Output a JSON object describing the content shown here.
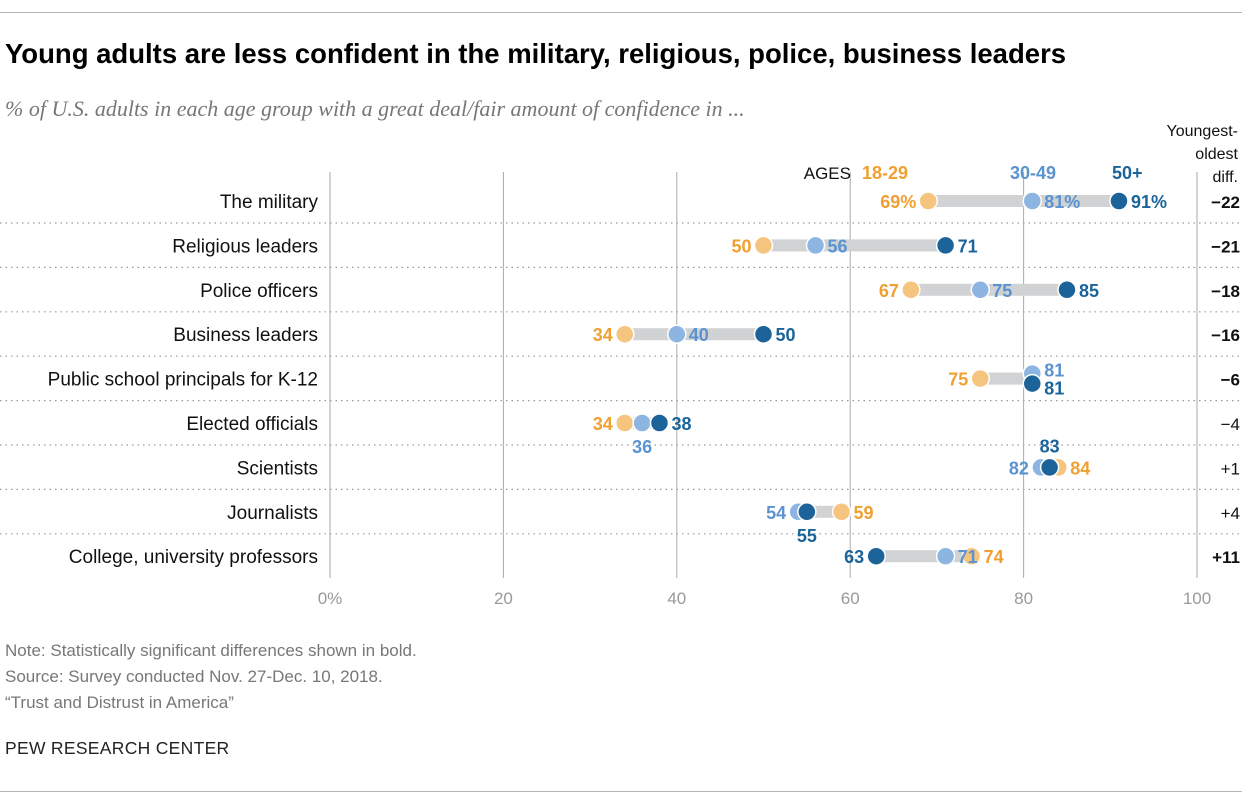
{
  "title": "Young adults are less confident in the military, religious, police, business leaders",
  "subtitle": "% of U.S. adults in each age group with a great deal/fair amount of confidence in ...",
  "chart_data": {
    "type": "dot-plot",
    "xlim": [
      0,
      100
    ],
    "x_ticks": [
      "0%",
      "20",
      "40",
      "60",
      "80",
      "100"
    ],
    "legend_label": "AGES",
    "diff_header": [
      "Youngest-",
      "oldest",
      "diff."
    ],
    "series": [
      {
        "name": "18-29",
        "label_color": "#f0a030",
        "dot_color": "#f5c47f"
      },
      {
        "name": "30-49",
        "label_color": "#5b93d1",
        "dot_color": "#8cb6e1"
      },
      {
        "name": "50+",
        "label_color": "#1a6499",
        "dot_color": "#1b6399"
      }
    ],
    "categories": [
      "The military",
      "Religious leaders",
      "Police officers",
      "Business leaders",
      "Public school principals for K-12",
      "Elected officials",
      "Scientists",
      "Journalists",
      "College, university professors"
    ],
    "values": [
      [
        69,
        81,
        91
      ],
      [
        50,
        56,
        71
      ],
      [
        67,
        75,
        85
      ],
      [
        34,
        40,
        50
      ],
      [
        75,
        81,
        81
      ],
      [
        34,
        36,
        38
      ],
      [
        84,
        82,
        83
      ],
      [
        59,
        54,
        55
      ],
      [
        74,
        71,
        63
      ]
    ],
    "diff": [
      "−22",
      "−21",
      "−18",
      "−16",
      "−6",
      "−4",
      "+1",
      "+4",
      "+11"
    ],
    "significant": [
      true,
      true,
      true,
      true,
      true,
      false,
      false,
      false,
      true
    ],
    "grid": true,
    "bar_color": "#d1d2d4"
  },
  "notes": [
    "Note: Statistically significant differences shown in bold.",
    "Source: Survey conducted Nov. 27-Dec. 10, 2018.",
    "“Trust and Distrust in America”"
  ],
  "brand": "PEW RESEARCH CENTER"
}
